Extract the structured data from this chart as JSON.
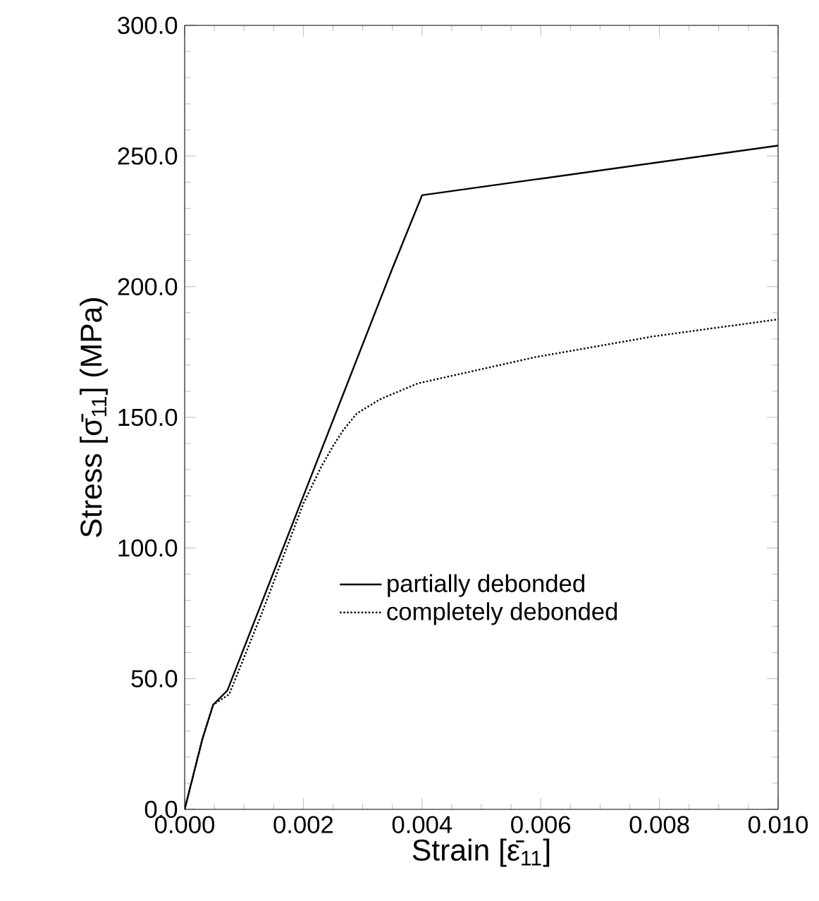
{
  "chart_data": {
    "type": "line",
    "xlabel": "Strain [ε̄$_{11}$]",
    "ylabel": "Stress [σ̄$_{11}$] (MPa)",
    "xlim": [
      0,
      0.01
    ],
    "ylim": [
      0,
      300
    ],
    "xticks": [
      {
        "value": 0,
        "label": "0.000"
      },
      {
        "value": 0.002,
        "label": "0.002"
      },
      {
        "value": 0.004,
        "label": "0.004"
      },
      {
        "value": 0.006,
        "label": "0.006"
      },
      {
        "value": 0.008,
        "label": "0.008"
      },
      {
        "value": 0.01,
        "label": "0.010"
      }
    ],
    "yticks": [
      {
        "value": 0,
        "label": "0.0"
      },
      {
        "value": 50,
        "label": "50.0"
      },
      {
        "value": 100,
        "label": "100.0"
      },
      {
        "value": 150,
        "label": "150.0"
      },
      {
        "value": 200,
        "label": "200.0"
      },
      {
        "value": 250,
        "label": "250.0"
      },
      {
        "value": 300,
        "label": "300.0"
      }
    ],
    "legend": "bottom",
    "grid": false,
    "marker": "none",
    "series": [
      {
        "name": "partially debonded",
        "color": "#000000",
        "line_style": "solid",
        "x": [
          0,
          0.0003,
          0.00048,
          0.00072,
          0.0035,
          0.004,
          0.01
        ],
        "values": [
          0,
          27,
          40,
          45.5,
          207,
          235,
          254
        ]
      },
      {
        "name": "completely debonded",
        "color": "#000000",
        "line_style": "dotted",
        "x": [
          0,
          0.0003,
          0.00048,
          0.00075,
          0.0013,
          0.002,
          0.0023,
          0.0025,
          0.00267,
          0.0029,
          0.0033,
          0.00393,
          0.0059,
          0.0079,
          0.01
        ],
        "values": [
          0,
          27,
          40,
          44,
          75,
          117,
          131,
          139,
          145,
          151.5,
          157,
          163,
          173,
          181,
          187.5
        ]
      }
    ]
  }
}
